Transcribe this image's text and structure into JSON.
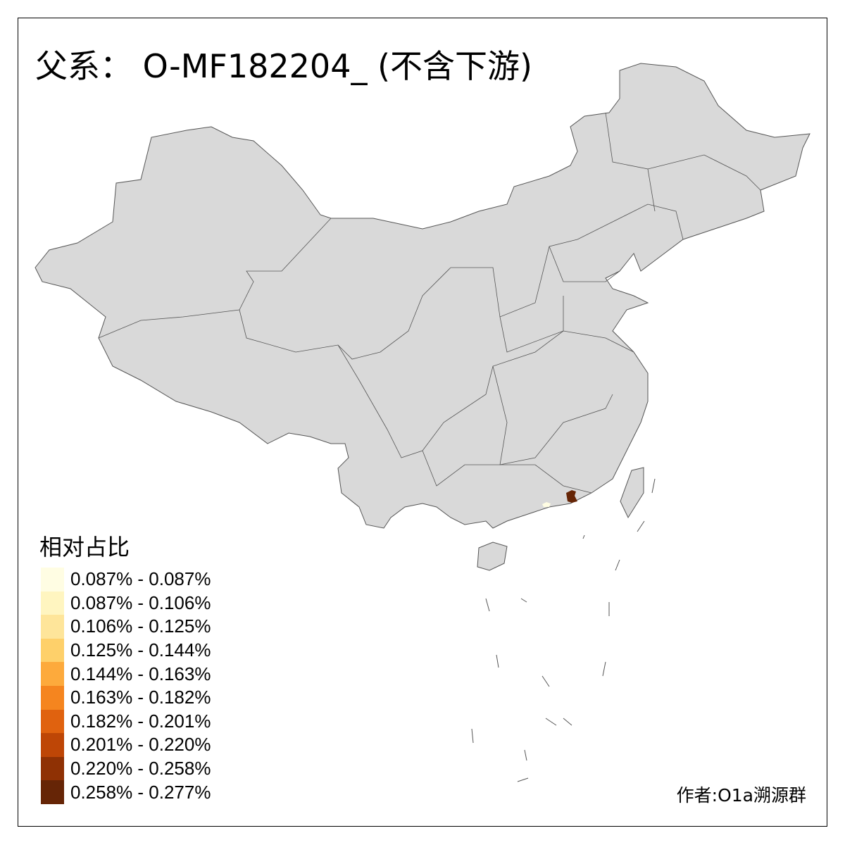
{
  "title": "父系： O-MF182204_ (不含下游)",
  "legend": {
    "title": "相对占比",
    "items": [
      {
        "label": "0.087% - 0.087%",
        "color": "#FFFDE3"
      },
      {
        "label": "0.087% - 0.106%",
        "color": "#FFF5C0"
      },
      {
        "label": "0.106% - 0.125%",
        "color": "#FEE59A"
      },
      {
        "label": "0.125% - 0.144%",
        "color": "#FED06A"
      },
      {
        "label": "0.144% - 0.163%",
        "color": "#FDAA3C"
      },
      {
        "label": "0.163% - 0.182%",
        "color": "#F5851F"
      },
      {
        "label": "0.182% - 0.201%",
        "color": "#E0620F"
      },
      {
        "label": "0.201% - 0.220%",
        "color": "#BE4606"
      },
      {
        "label": "0.220% - 0.258%",
        "color": "#8F3104"
      },
      {
        "label": "0.258% - 0.277%",
        "color": "#662506"
      }
    ]
  },
  "map": {
    "base_color": "#D9D9D9",
    "border_color": "#555555"
  },
  "author": "作者:O1a溯源群"
}
